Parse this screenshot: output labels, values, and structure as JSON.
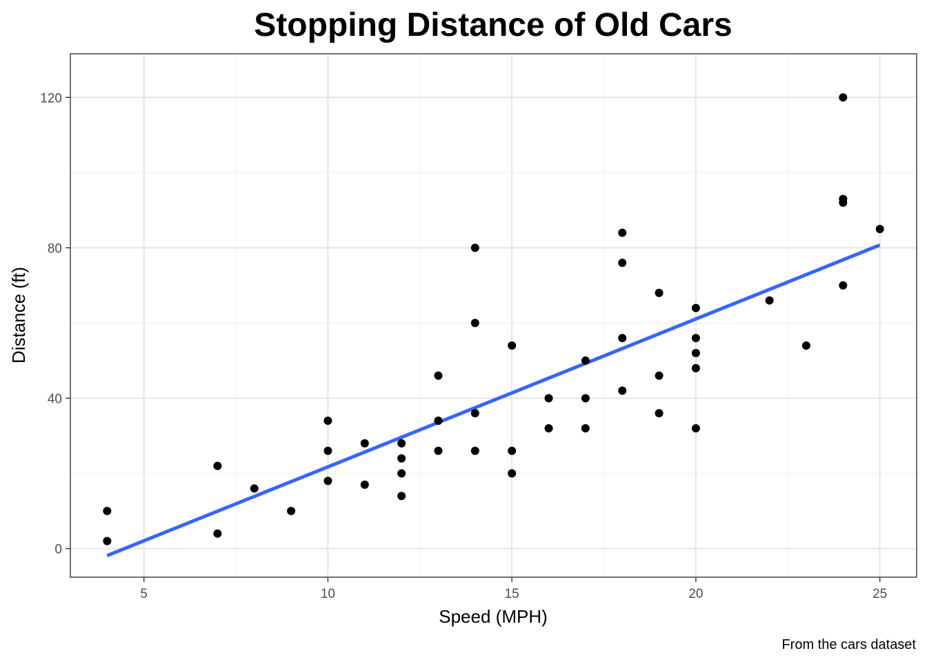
{
  "chart_data": {
    "type": "scatter",
    "title": "Stopping Distance of Old Cars",
    "xlabel": "Speed (MPH)",
    "ylabel": "Distance (ft)",
    "caption": "From the cars dataset",
    "xlim": [
      3,
      26
    ],
    "ylim": [
      -7.6,
      131.6
    ],
    "xticks": [
      5,
      10,
      15,
      20,
      25
    ],
    "yticks": [
      0,
      40,
      80,
      120
    ],
    "grid": true,
    "colors": {
      "points": "#000000",
      "fit_line": "#3366FF"
    },
    "points": [
      {
        "x": 4,
        "y": 2
      },
      {
        "x": 4,
        "y": 10
      },
      {
        "x": 7,
        "y": 4
      },
      {
        "x": 7,
        "y": 22
      },
      {
        "x": 8,
        "y": 16
      },
      {
        "x": 9,
        "y": 10
      },
      {
        "x": 10,
        "y": 18
      },
      {
        "x": 10,
        "y": 26
      },
      {
        "x": 10,
        "y": 34
      },
      {
        "x": 11,
        "y": 17
      },
      {
        "x": 11,
        "y": 28
      },
      {
        "x": 12,
        "y": 14
      },
      {
        "x": 12,
        "y": 20
      },
      {
        "x": 12,
        "y": 24
      },
      {
        "x": 12,
        "y": 28
      },
      {
        "x": 13,
        "y": 26
      },
      {
        "x": 13,
        "y": 34
      },
      {
        "x": 13,
        "y": 34
      },
      {
        "x": 13,
        "y": 46
      },
      {
        "x": 14,
        "y": 26
      },
      {
        "x": 14,
        "y": 36
      },
      {
        "x": 14,
        "y": 60
      },
      {
        "x": 14,
        "y": 80
      },
      {
        "x": 15,
        "y": 20
      },
      {
        "x": 15,
        "y": 26
      },
      {
        "x": 15,
        "y": 54
      },
      {
        "x": 16,
        "y": 32
      },
      {
        "x": 16,
        "y": 40
      },
      {
        "x": 17,
        "y": 32
      },
      {
        "x": 17,
        "y": 40
      },
      {
        "x": 17,
        "y": 50
      },
      {
        "x": 18,
        "y": 42
      },
      {
        "x": 18,
        "y": 56
      },
      {
        "x": 18,
        "y": 76
      },
      {
        "x": 18,
        "y": 84
      },
      {
        "x": 19,
        "y": 36
      },
      {
        "x": 19,
        "y": 46
      },
      {
        "x": 19,
        "y": 68
      },
      {
        "x": 20,
        "y": 32
      },
      {
        "x": 20,
        "y": 48
      },
      {
        "x": 20,
        "y": 52
      },
      {
        "x": 20,
        "y": 56
      },
      {
        "x": 20,
        "y": 64
      },
      {
        "x": 22,
        "y": 66
      },
      {
        "x": 23,
        "y": 54
      },
      {
        "x": 24,
        "y": 70
      },
      {
        "x": 24,
        "y": 92
      },
      {
        "x": 24,
        "y": 93
      },
      {
        "x": 24,
        "y": 120
      },
      {
        "x": 25,
        "y": 85
      }
    ],
    "fit_line": {
      "x": [
        4,
        25
      ],
      "y": [
        -1.85,
        80.73
      ]
    }
  }
}
